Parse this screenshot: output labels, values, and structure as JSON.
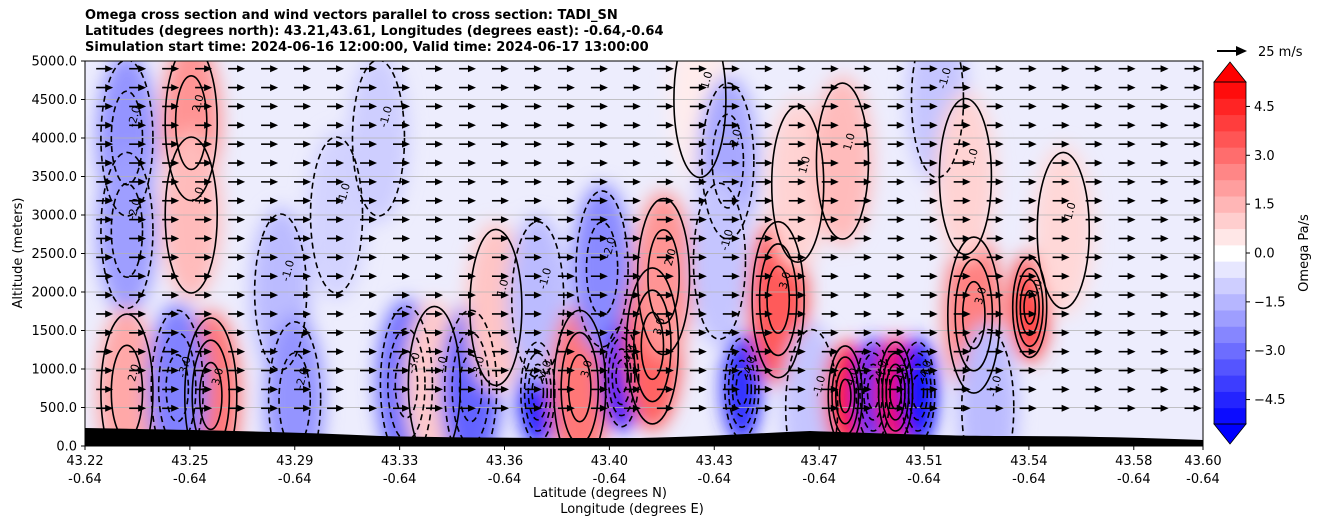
{
  "title_lines": [
    "Omega cross section and wind vectors parallel to cross section: TADI_SN",
    "Latitudes (degrees north): 43.21,43.61, Longitudes (degrees east): -0.64,-0.64",
    "Simulation start time: 2024-06-16 12:00:00, Valid time: 2024-06-17 13:00:00"
  ],
  "quiver_key_label": "25 m/s",
  "chart_data": {
    "type": "heatmap",
    "ylabel": "Altitude (meters)",
    "xlabel_lines": [
      "Latitude (degrees N)",
      "Longitude (degrees E)"
    ],
    "ylim": [
      0,
      5000
    ],
    "y_ticks": [
      "0.0",
      "500.0",
      "1000.0",
      "1500.0",
      "2000.0",
      "2500.0",
      "3000.0",
      "3500.0",
      "4000.0",
      "4500.0",
      "5000.0"
    ],
    "x_ticks": [
      {
        "lat": "43.22",
        "lon": "-0.64"
      },
      {
        "lat": "43.25",
        "lon": "-0.64"
      },
      {
        "lat": "43.29",
        "lon": "-0.64"
      },
      {
        "lat": "43.33",
        "lon": "-0.64"
      },
      {
        "lat": "43.36",
        "lon": "-0.64"
      },
      {
        "lat": "43.40",
        "lon": "-0.64"
      },
      {
        "lat": "43.43",
        "lon": "-0.64"
      },
      {
        "lat": "43.47",
        "lon": "-0.64"
      },
      {
        "lat": "43.51",
        "lon": "-0.64"
      },
      {
        "lat": "43.54",
        "lon": "-0.64"
      },
      {
        "lat": "43.58",
        "lon": "-0.64"
      },
      {
        "lat": "43.60",
        "lon": "-0.64"
      }
    ],
    "grid": "horizontal",
    "colorbar": {
      "label": "Omega Pa/s",
      "range": [
        -5.25,
        5.25
      ],
      "extend": "both",
      "tick_values": [
        4.5,
        3.0,
        1.5,
        0.0,
        -1.5,
        -3.0,
        -4.5
      ],
      "tick_labels": [
        "4.5",
        "3.0",
        "1.5",
        "0.0",
        "−1.5",
        "−3.0",
        "−4.5"
      ],
      "low_color": "#0000ff",
      "mid_color": "#ffffff",
      "high_color": "#ff0000"
    },
    "cells": [
      {
        "lat": 43.225,
        "alt": 4000,
        "v": -2.2
      },
      {
        "lat": 43.225,
        "alt": 2800,
        "v": -2.0
      },
      {
        "lat": 43.225,
        "alt": 700,
        "v": 1.8
      },
      {
        "lat": 43.248,
        "alt": 4200,
        "v": 2.2
      },
      {
        "lat": 43.248,
        "alt": 3000,
        "v": 1.4
      },
      {
        "lat": 43.255,
        "alt": 650,
        "v": 2.8
      },
      {
        "lat": 43.243,
        "alt": 750,
        "v": -2.6
      },
      {
        "lat": 43.28,
        "alt": 2000,
        "v": -1.4
      },
      {
        "lat": 43.285,
        "alt": 600,
        "v": -2.2
      },
      {
        "lat": 43.3,
        "alt": 3000,
        "v": -0.9
      },
      {
        "lat": 43.315,
        "alt": 4000,
        "v": -1.0
      },
      {
        "lat": 43.325,
        "alt": 800,
        "v": -3.0
      },
      {
        "lat": 43.335,
        "alt": 800,
        "v": 1.1
      },
      {
        "lat": 43.348,
        "alt": 750,
        "v": -3.2
      },
      {
        "lat": 43.357,
        "alt": 1800,
        "v": 1.2
      },
      {
        "lat": 43.372,
        "alt": 700,
        "v": -4.6
      },
      {
        "lat": 43.372,
        "alt": 1900,
        "v": -1.4
      },
      {
        "lat": 43.387,
        "alt": 750,
        "v": 2.8
      },
      {
        "lat": 43.395,
        "alt": 2300,
        "v": -2.4
      },
      {
        "lat": 43.402,
        "alt": 900,
        "v": -5.0
      },
      {
        "lat": 43.413,
        "alt": 1300,
        "v": 3.2
      },
      {
        "lat": 43.417,
        "alt": 2200,
        "v": 2.2
      },
      {
        "lat": 43.43,
        "alt": 4500,
        "v": 0.4
      },
      {
        "lat": 43.44,
        "alt": 3700,
        "v": -1.8
      },
      {
        "lat": 43.437,
        "alt": 2400,
        "v": -1.2
      },
      {
        "lat": 43.445,
        "alt": 750,
        "v": -4.2
      },
      {
        "lat": 43.458,
        "alt": 1900,
        "v": 3.4
      },
      {
        "lat": 43.465,
        "alt": 3400,
        "v": 0.9
      },
      {
        "lat": 43.47,
        "alt": 500,
        "v": -1.2
      },
      {
        "lat": 43.481,
        "alt": 3700,
        "v": 1.4
      },
      {
        "lat": 43.482,
        "alt": 650,
        "v": 5.0
      },
      {
        "lat": 43.492,
        "alt": 700,
        "v": -4.2
      },
      {
        "lat": 43.5,
        "alt": 700,
        "v": 5.0
      },
      {
        "lat": 43.508,
        "alt": 700,
        "v": -4.8
      },
      {
        "lat": 43.515,
        "alt": 4500,
        "v": -1.2
      },
      {
        "lat": 43.528,
        "alt": 1700,
        "v": 2.6
      },
      {
        "lat": 43.525,
        "alt": 3500,
        "v": 0.9
      },
      {
        "lat": 43.533,
        "alt": 500,
        "v": -1.4
      },
      {
        "lat": 43.548,
        "alt": 1800,
        "v": 3.8
      },
      {
        "lat": 43.56,
        "alt": 2800,
        "v": 0.8
      }
    ],
    "contour_labels": [
      "0.0",
      "1.0",
      "2.0",
      "3.0",
      "4.0",
      "-1.0",
      "-2.0",
      "-3.0",
      "-4.0"
    ],
    "wind_vectors": {
      "direction": "east",
      "note": "arrows parallel to cross section, pointing right"
    }
  }
}
